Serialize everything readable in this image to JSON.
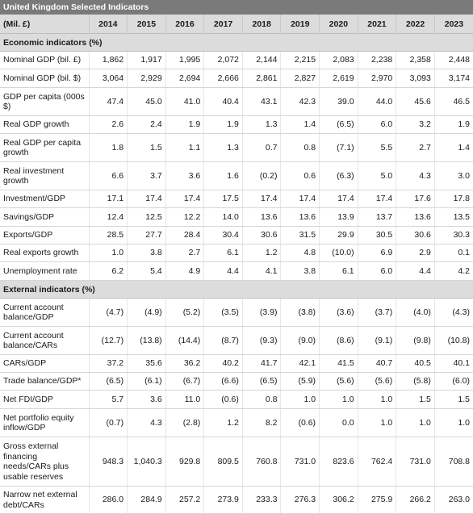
{
  "title": "United Kingdom Selected Indicators",
  "unit": "(Mil. £)",
  "years": [
    "2014",
    "2015",
    "2016",
    "2017",
    "2018",
    "2019",
    "2020",
    "2021",
    "2022",
    "2023"
  ],
  "sections": [
    {
      "title": "Economic indicators (%)",
      "rows": [
        {
          "label": "Nominal GDP (bil. £)",
          "values": [
            "1,862",
            "1,917",
            "1,995",
            "2,072",
            "2,144",
            "2,215",
            "2,083",
            "2,238",
            "2,358",
            "2,448"
          ],
          "h": 22
        },
        {
          "label": "Nominal GDP (bil. $)",
          "values": [
            "3,064",
            "2,929",
            "2,694",
            "2,666",
            "2,861",
            "2,827",
            "2,619",
            "2,970",
            "3,093",
            "3,174"
          ],
          "h": 23
        },
        {
          "label": "GDP per capita (000s $)",
          "values": [
            "47.4",
            "45.0",
            "41.0",
            "40.4",
            "43.1",
            "42.3",
            "39.0",
            "44.0",
            "45.6",
            "46.5"
          ],
          "h": 35
        },
        {
          "label": "Real GDP growth",
          "values": [
            "2.6",
            "2.4",
            "1.9",
            "1.9",
            "1.3",
            "1.4",
            "(6.5)",
            "6.0",
            "3.2",
            "1.9"
          ],
          "h": 22
        },
        {
          "label": "Real GDP per capita growth",
          "values": [
            "1.8",
            "1.5",
            "1.1",
            "1.3",
            "0.7",
            "0.8",
            "(7.1)",
            "5.5",
            "2.7",
            "1.4"
          ],
          "h": 35
        },
        {
          "label": "Real investment growth",
          "values": [
            "6.6",
            "3.7",
            "3.6",
            "1.6",
            "(0.2)",
            "0.6",
            "(6.3)",
            "5.0",
            "4.3",
            "3.0"
          ],
          "h": 35
        },
        {
          "label": "Investment/GDP",
          "values": [
            "17.1",
            "17.4",
            "17.4",
            "17.5",
            "17.4",
            "17.4",
            "17.4",
            "17.4",
            "17.6",
            "17.8"
          ],
          "h": 22
        },
        {
          "label": "Savings/GDP",
          "values": [
            "12.4",
            "12.5",
            "12.2",
            "14.0",
            "13.6",
            "13.6",
            "13.9",
            "13.7",
            "13.6",
            "13.5"
          ],
          "h": 23
        },
        {
          "label": "Exports/GDP",
          "values": [
            "28.5",
            "27.7",
            "28.4",
            "30.4",
            "30.6",
            "31.5",
            "29.9",
            "30.5",
            "30.6",
            "30.3"
          ],
          "h": 22
        },
        {
          "label": "Real exports growth",
          "values": [
            "1.0",
            "3.8",
            "2.7",
            "6.1",
            "1.2",
            "4.8",
            "(10.0)",
            "6.9",
            "2.9",
            "0.1"
          ],
          "h": 22
        },
        {
          "label": "Unemployment rate",
          "values": [
            "6.2",
            "5.4",
            "4.9",
            "4.4",
            "4.1",
            "3.8",
            "6.1",
            "6.0",
            "4.4",
            "4.2"
          ],
          "h": 23
        }
      ]
    },
    {
      "title": "External indicators (%)",
      "rows": [
        {
          "label": "Current account balance/GDP",
          "values": [
            "(4.7)",
            "(4.9)",
            "(5.2)",
            "(3.5)",
            "(3.9)",
            "(3.8)",
            "(3.6)",
            "(3.7)",
            "(4.0)",
            "(4.3)"
          ],
          "h": 35
        },
        {
          "label": "Current account balance/CARs",
          "values": [
            "(12.7)",
            "(13.8)",
            "(14.4)",
            "(8.7)",
            "(9.3)",
            "(9.0)",
            "(8.6)",
            "(9.1)",
            "(9.8)",
            "(10.8)"
          ],
          "h": 35
        },
        {
          "label": "CARs/GDP",
          "values": [
            "37.2",
            "35.6",
            "36.2",
            "40.2",
            "41.7",
            "42.1",
            "41.5",
            "40.7",
            "40.5",
            "40.1"
          ],
          "h": 22
        },
        {
          "label": "Trade balance/GDP*",
          "values": [
            "(6.5)",
            "(6.1)",
            "(6.7)",
            "(6.6)",
            "(6.5)",
            "(5.9)",
            "(5.6)",
            "(5.6)",
            "(5.8)",
            "(6.0)"
          ],
          "h": 22
        },
        {
          "label": "Net FDI/GDP",
          "values": [
            "5.7",
            "3.6",
            "11.0",
            "(0.6)",
            "0.8",
            "1.0",
            "1.0",
            "1.0",
            "1.5",
            "1.5"
          ],
          "h": 23
        },
        {
          "label": "Net portfolio equity inflow/GDP",
          "values": [
            "(0.7)",
            "4.3",
            "(2.8)",
            "1.2",
            "8.2",
            "(0.6)",
            "0.0",
            "1.0",
            "1.0",
            "1.0"
          ],
          "h": 35
        },
        {
          "label": "Gross external financing needs/CARs plus usable reserves",
          "values": [
            "948.3",
            "1,040.3",
            "929.8",
            "809.5",
            "760.8",
            "731.0",
            "823.6",
            "762.4",
            "731.0",
            "708.8"
          ],
          "h": 61
        },
        {
          "label": "Narrow net external debt/CARs",
          "values": [
            "286.0",
            "284.9",
            "257.2",
            "273.9",
            "233.3",
            "276.3",
            "306.2",
            "275.9",
            "266.2",
            "263.0"
          ],
          "h": 34
        }
      ]
    }
  ]
}
